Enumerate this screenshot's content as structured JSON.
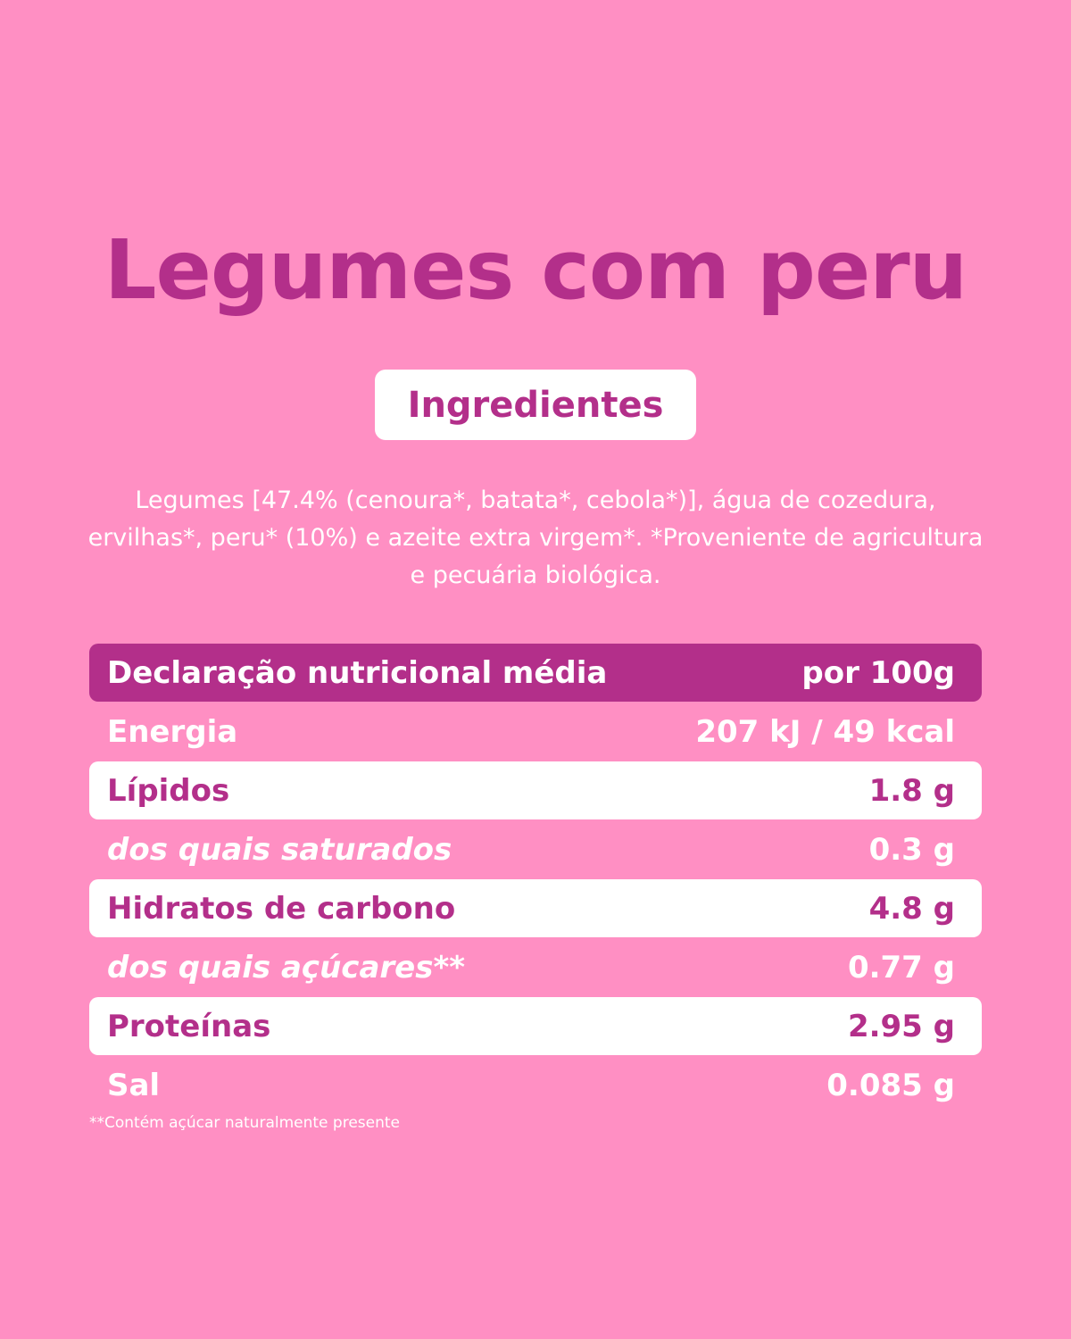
{
  "title": "Legumes com peru",
  "ingredients_heading": "Ingredientes",
  "ingredients_text": "Legumes [47.4% (cenoura*, batata*, cebola*)], água de cozedura, ervilhas*, peru* (10%) e azeite extra virgem*. *Proveniente de agricultura e pecuária biológica.",
  "nutrition": {
    "header_label": "Declaração nutricional média",
    "header_value": "por 100g",
    "rows": [
      {
        "label": "Energia",
        "value": "207 kJ / 49 kcal"
      },
      {
        "label": "Lípidos",
        "value": "1.8 g"
      },
      {
        "label": "dos quais saturados",
        "value": "0.3 g"
      },
      {
        "label": "Hidratos de carbono",
        "value": "4.8 g"
      },
      {
        "label": "dos quais açúcares**",
        "value": "0.77 g"
      },
      {
        "label": "Proteínas",
        "value": "2.95 g"
      },
      {
        "label": "Sal",
        "value": "0.085 g"
      }
    ]
  },
  "footnote": "**Contém açúcar naturalmente presente",
  "colors": {
    "background": "#ff8fc3",
    "accent": "#b32f8a",
    "white": "#ffffff"
  }
}
